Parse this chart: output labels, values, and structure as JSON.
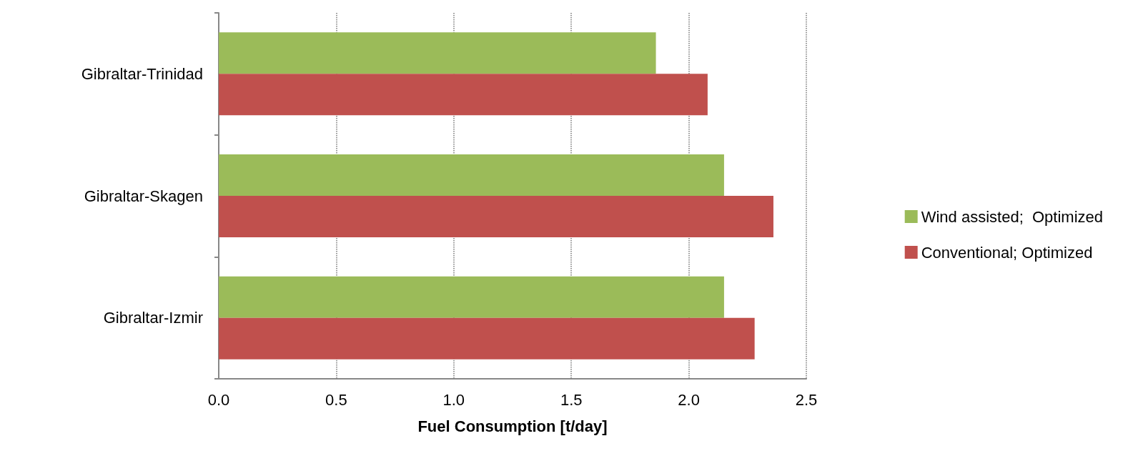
{
  "chart_data": {
    "type": "bar",
    "orientation": "horizontal",
    "categories": [
      "Gibraltar-Trinidad",
      "Gibraltar-Skagen",
      "Gibraltar-Izmir"
    ],
    "series": [
      {
        "name": "Wind assisted;  Optimized",
        "color": "#9bbb59",
        "values": [
          1.86,
          2.15,
          2.15
        ]
      },
      {
        "name": "Conventional; Optimized",
        "color": "#c0504d",
        "values": [
          2.08,
          2.36,
          2.28
        ]
      }
    ],
    "xlabel": "Fuel Consumption [t/day]",
    "xlim": [
      0,
      2.5
    ],
    "xticks": [
      {
        "value": 0,
        "label": "0.0"
      },
      {
        "value": 0.5,
        "label": "0.5"
      },
      {
        "value": 1,
        "label": "1.0"
      },
      {
        "value": 1.5,
        "label": "1.5"
      },
      {
        "value": 2,
        "label": "2.0"
      },
      {
        "value": 2.5,
        "label": "2.5"
      }
    ],
    "grid": "x",
    "legend": "right"
  }
}
